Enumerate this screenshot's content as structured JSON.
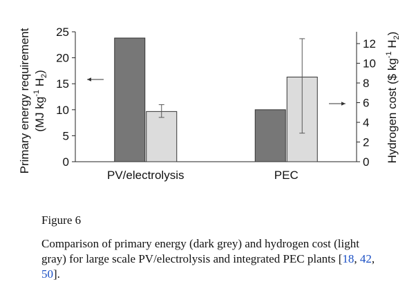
{
  "chart_data": {
    "type": "bar",
    "categories": [
      "PV/electrolysis",
      "PEC"
    ],
    "series": [
      {
        "name": "Primary energy (dark grey)",
        "axis": "left",
        "color": "#777777",
        "values": [
          23.8,
          10.0
        ]
      },
      {
        "name": "Hydrogen cost (light gray)",
        "axis": "right",
        "color": "#dcdcdc",
        "values": [
          5.1,
          8.6
        ],
        "error_low": [
          4.5,
          2.9
        ],
        "error_high": [
          5.8,
          12.5
        ]
      }
    ],
    "ylabel_left_line1": "Primary energy requirement",
    "ylabel_left_line2": "(MJ kg",
    "ylabel_left_sup": "-1",
    "ylabel_left_tail": " H",
    "ylabel_left_sub": "2",
    "ylabel_left_close": ")",
    "ylabel_right": "Hydrogen cost ($ kg",
    "ylabel_right_sup": "-1",
    "ylabel_right_tail": " H",
    "ylabel_right_sub": "2",
    "ylabel_right_close": ")",
    "ylim_left": [
      0,
      25
    ],
    "ylim_right": [
      0,
      13.2
    ],
    "yticks_left": [
      0,
      5,
      10,
      15,
      20,
      25
    ],
    "yticks_right": [
      0,
      2,
      4,
      6,
      8,
      10,
      12
    ],
    "grid": false
  },
  "caption": {
    "label": "Figure 6",
    "text_before": "Comparison of primary energy (dark grey) and hydrogen cost (light gray) for large scale PV/electrolysis and integrated PEC plants [",
    "refs": [
      "18",
      "42",
      "50"
    ],
    "ref_separator": ", ",
    "text_after": "]."
  }
}
